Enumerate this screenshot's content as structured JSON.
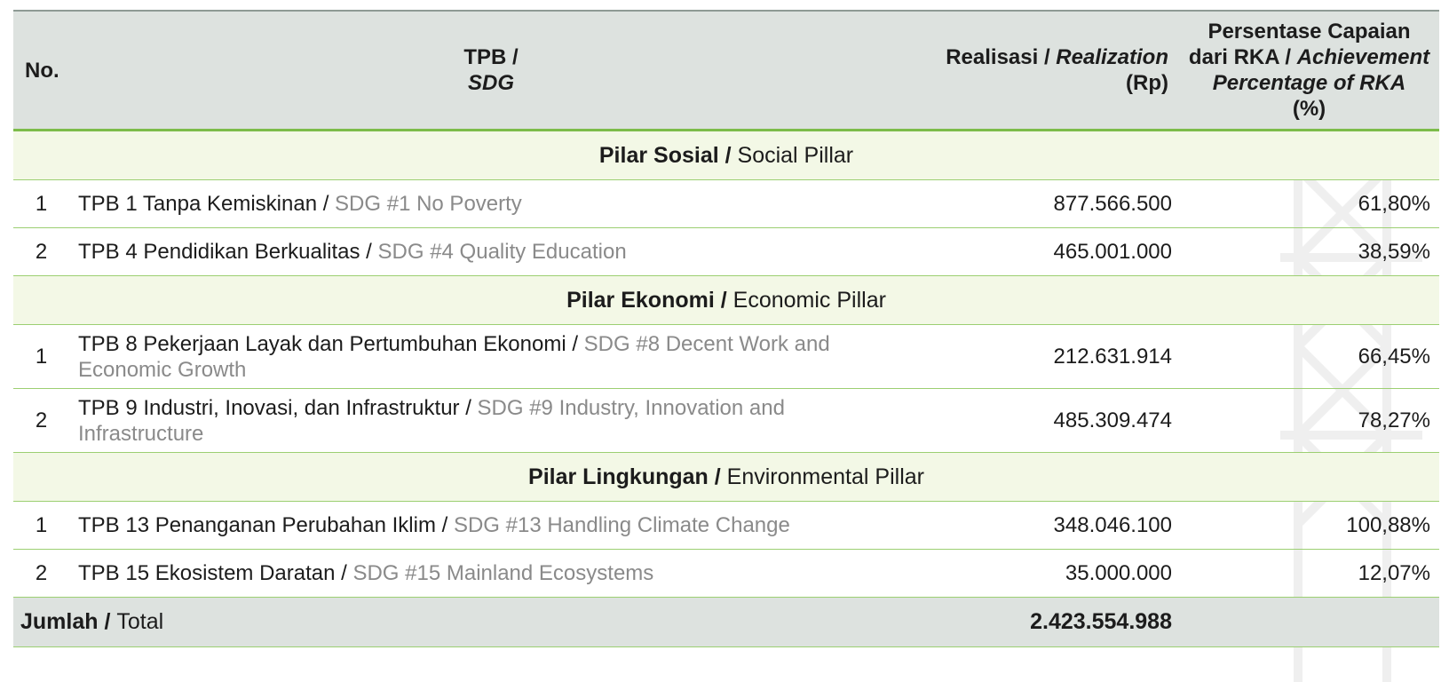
{
  "header": {
    "no": "No.",
    "sdg_id": "TPB /",
    "sdg_en": "SDG",
    "realization_id": "Realisasi / ",
    "realization_en": "Realization",
    "realization_unit": "(Rp)",
    "pct_line1": "Persentase Capaian",
    "pct_line2_id": "dari RKA / ",
    "pct_line2_en": "Achievement",
    "pct_line3_en": "Percentage of RKA",
    "pct_unit": "(%)"
  },
  "pillars": [
    {
      "title_id": "Pilar Sosial / ",
      "title_en": "Social Pillar",
      "rows": [
        {
          "no": "1",
          "name_id": "TPB 1 Tanpa Kemiskinan / ",
          "name_en": "SDG #1 No Poverty",
          "realization": "877.566.500",
          "pct": "61,80%"
        },
        {
          "no": "2",
          "name_id": "TPB 4 Pendidikan Berkualitas / ",
          "name_en": "SDG #4 Quality Education",
          "realization": "465.001.000",
          "pct": "38,59%"
        }
      ]
    },
    {
      "title_id": "Pilar Ekonomi / ",
      "title_en": "Economic Pillar",
      "rows": [
        {
          "no": "1",
          "name_id": "TPB 8 Pekerjaan Layak dan Pertumbuhan Ekonomi / ",
          "name_en": "SDG #8 Decent Work and Economic Growth",
          "realization": "212.631.914",
          "pct": "66,45%"
        },
        {
          "no": "2",
          "name_id": "TPB 9 Industri, Inovasi, dan Infrastruktur / ",
          "name_en": "SDG #9 Industry, Innovation and Infrastructure",
          "realization": "485.309.474",
          "pct": "78,27%"
        }
      ]
    },
    {
      "title_id": "Pilar Lingkungan / ",
      "title_en": "Environmental Pillar",
      "rows": [
        {
          "no": "1",
          "name_id": "TPB 13 Penanganan Perubahan Iklim / ",
          "name_en": "SDG #13 Handling Climate Change",
          "realization": "348.046.100",
          "pct": "100,88%"
        },
        {
          "no": "2",
          "name_id": "TPB 15 Ekosistem Daratan / ",
          "name_en": "SDG #15 Mainland Ecosystems",
          "realization": "35.000.000",
          "pct": "12,07%"
        }
      ]
    }
  ],
  "total": {
    "label_id": "Jumlah / ",
    "label_en": "Total",
    "value": "2.423.554.988"
  },
  "colors": {
    "header_bg": "#dde2df",
    "pillar_bg": "#f3f8e6",
    "accent_green": "#7cbc4a",
    "english_text": "#8a8a8a"
  }
}
